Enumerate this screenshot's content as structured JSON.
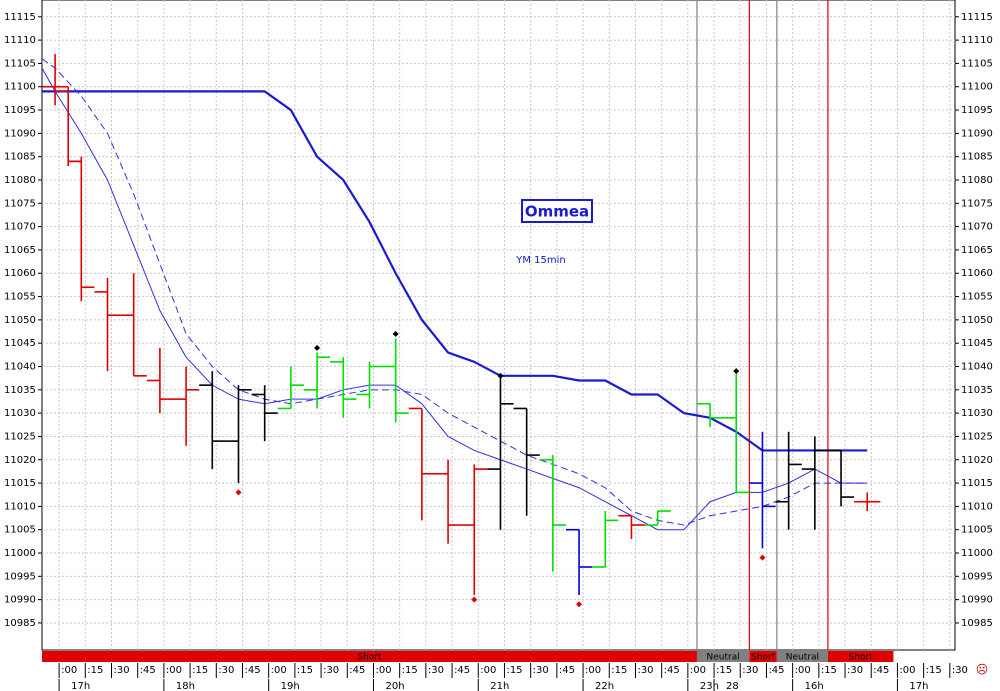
{
  "chart_data": {
    "type": "ohlc",
    "title": "Ommea",
    "subtitle": "YM 15min",
    "ylim": [
      10979.2,
      11118.6
    ],
    "yticks": [
      10985,
      10990,
      10995,
      11000,
      11005,
      11010,
      11015,
      11020,
      11025,
      11030,
      11035,
      11040,
      11045,
      11050,
      11055,
      11060,
      11065,
      11070,
      11075,
      11080,
      11085,
      11090,
      11095,
      11100,
      11105,
      11110,
      11115
    ],
    "xlim": [
      -0.5,
      34.35
    ],
    "grid": true,
    "slot_labels": [
      ":00",
      ":15",
      ":30",
      ":45",
      ":00",
      ":15",
      ":30",
      ":45",
      ":00",
      ":15",
      ":30",
      ":45",
      ":00",
      ":15",
      ":30",
      ":45",
      ":00",
      ":15",
      ":30",
      ":45",
      ":00",
      ":15",
      ":30",
      ":45",
      ":00",
      ":15",
      ":30",
      ":45",
      ":00",
      ":15",
      ":30",
      ":45",
      ":00",
      ":15",
      ":30"
    ],
    "hour_labels": [
      {
        "value": 0,
        "label": "17h"
      },
      {
        "value": 4,
        "label": "18h"
      },
      {
        "value": 8,
        "label": "19h"
      },
      {
        "value": 12,
        "label": "20h"
      },
      {
        "value": 16,
        "label": "21h"
      },
      {
        "value": 20,
        "label": "22h"
      },
      {
        "value": 24,
        "label": "23h"
      },
      {
        "value": 25,
        "label": "28"
      },
      {
        "value": 28,
        "label": "16h"
      },
      {
        "value": 32,
        "label": "17h"
      }
    ],
    "bars": [
      {
        "x": 0,
        "open": 11100,
        "high": 11107,
        "low": 11096,
        "close": 11100,
        "color": "#e00000"
      },
      {
        "x": 0.5,
        "open": 11099,
        "high": 11100,
        "low": 11083,
        "close": 11084,
        "color": "#e00000"
      },
      {
        "x": 1,
        "open": 11084,
        "high": 11085,
        "low": 11054,
        "close": 11057,
        "color": "#e00000"
      },
      {
        "x": 2,
        "open": 11056,
        "high": 11059,
        "low": 11039,
        "close": 11051,
        "color": "#e00000"
      },
      {
        "x": 3,
        "open": 11051,
        "high": 11060,
        "low": 11038,
        "close": 11038,
        "color": "#e00000"
      },
      {
        "x": 4,
        "open": 11037,
        "high": 11044,
        "low": 11030,
        "close": 11033,
        "color": "#e00000"
      },
      {
        "x": 5,
        "open": 11033,
        "high": 11040,
        "low": 11023,
        "close": 11035,
        "color": "#e00000"
      },
      {
        "x": 6,
        "open": 11036,
        "high": 11039,
        "low": 11018,
        "close": 11024,
        "color": "#000000"
      },
      {
        "x": 7,
        "open": 11024,
        "high": 11036,
        "low": 11015,
        "close": 11035,
        "color": "#000000"
      },
      {
        "x": 8,
        "open": 11034,
        "high": 11036,
        "low": 11024,
        "close": 11030,
        "color": "#000000"
      },
      {
        "x": 9,
        "open": 11031,
        "high": 11040,
        "low": 11031,
        "close": 11036,
        "color": "#00e000"
      },
      {
        "x": 10,
        "open": 11035,
        "high": 11043,
        "low": 11031,
        "close": 11042,
        "color": "#00e000"
      },
      {
        "x": 11,
        "open": 11041,
        "high": 11042,
        "low": 11029,
        "close": 11033,
        "color": "#00e000"
      },
      {
        "x": 12,
        "open": 11034,
        "high": 11041,
        "low": 11031,
        "close": 11040,
        "color": "#00e000"
      },
      {
        "x": 13,
        "open": 11040,
        "high": 11046,
        "low": 11028,
        "close": 11030,
        "color": "#00e000"
      },
      {
        "x": 14,
        "open": 11031,
        "high": 11031,
        "low": 11007,
        "close": 11017,
        "color": "#e00000"
      },
      {
        "x": 15,
        "open": 11017,
        "high": 11020,
        "low": 11002,
        "close": 11006,
        "color": "#e00000"
      },
      {
        "x": 16,
        "open": 11006,
        "high": 11019,
        "low": 10991,
        "close": 11018,
        "color": "#e00000"
      },
      {
        "x": 17,
        "open": 11018,
        "high": 11038,
        "low": 11005,
        "close": 11032,
        "color": "#000000"
      },
      {
        "x": 18,
        "open": 11031,
        "high": 11031,
        "low": 11008,
        "close": 11021,
        "color": "#000000"
      },
      {
        "x": 19,
        "open": 11020,
        "high": 11021,
        "low": 10996,
        "close": 11006,
        "color": "#00e000"
      },
      {
        "x": 20,
        "open": 11005,
        "high": 11005,
        "low": 10991,
        "close": 10997,
        "color": "#0000e0"
      },
      {
        "x": 21,
        "open": 10997,
        "high": 11009,
        "low": 10997,
        "close": 11007,
        "color": "#00e000"
      },
      {
        "x": 22,
        "open": 11008,
        "high": 11008,
        "low": 11003,
        "close": 11006,
        "color": "#e00000"
      },
      {
        "x": 23,
        "open": 11006,
        "high": 11009,
        "low": 11006,
        "close": 11009,
        "color": "#00e000"
      },
      {
        "x": 25,
        "open": 11032,
        "high": 11032,
        "low": 11027,
        "close": 11029,
        "color": "#00e000"
      },
      {
        "x": 26,
        "open": 11029,
        "high": 11039,
        "low": 11013,
        "close": 11013,
        "color": "#00e000"
      },
      {
        "x": 27,
        "open": 11015,
        "high": 11026,
        "low": 11001,
        "close": 11010,
        "color": "#0000e0"
      },
      {
        "x": 28,
        "open": 11011,
        "high": 11026,
        "low": 11005,
        "close": 11019,
        "color": "#000000"
      },
      {
        "x": 29,
        "open": 11018,
        "high": 11025,
        "low": 11005,
        "close": 11022,
        "color": "#000000"
      },
      {
        "x": 30,
        "open": 11022,
        "high": 11022,
        "low": 11010,
        "close": 11012,
        "color": "#000000"
      },
      {
        "x": 31,
        "open": 11011,
        "high": 11013,
        "low": 11009,
        "close": 11011,
        "color": "#e00000"
      }
    ],
    "series": [
      {
        "style": "thick",
        "color": "#1a1ad0",
        "x": [
          -0.5,
          8,
          9,
          10,
          11,
          12,
          13,
          14,
          15,
          16,
          17,
          18,
          19,
          20,
          21,
          22,
          23,
          24,
          25,
          26,
          27,
          28,
          29,
          30,
          31
        ],
        "values": [
          11099,
          11099,
          11095,
          11085,
          11080,
          11071,
          11060,
          11050,
          11043,
          11041,
          11038,
          11038,
          11038,
          11037,
          11037,
          11034,
          11034,
          11030,
          11029,
          11026,
          11022,
          11022,
          11022,
          11022,
          11022
        ]
      },
      {
        "style": "solid",
        "color": "#3030e0",
        "x": [
          -0.5,
          0,
          1,
          2,
          3,
          4,
          5,
          6,
          7,
          8,
          9,
          10,
          11,
          12,
          13,
          14,
          15,
          16,
          17,
          18,
          19,
          20,
          21,
          22,
          23,
          24,
          25,
          26,
          27,
          28,
          29,
          30,
          31
        ],
        "values": [
          11104,
          11099,
          11090,
          11080,
          11066,
          11052,
          11042,
          11036,
          11033,
          11032,
          11033,
          11033,
          11035,
          11036,
          11036,
          11032,
          11025,
          11022,
          11020,
          11018,
          11016,
          11014,
          11011,
          11008,
          11005,
          11005,
          11011,
          11013,
          11013,
          11015,
          11018,
          11015,
          11015
        ]
      },
      {
        "style": "dashed",
        "color": "#3030e0",
        "x": [
          -0.5,
          0,
          1,
          2,
          3,
          4,
          5,
          6,
          7,
          8,
          9,
          10,
          11,
          12,
          13,
          14,
          15,
          16,
          17,
          18,
          19,
          20,
          21,
          22,
          23,
          24,
          25,
          26,
          27,
          28,
          29,
          30,
          31
        ],
        "values": [
          11106,
          11104,
          11098,
          11090,
          11077,
          11062,
          11047,
          11040,
          11035,
          11033,
          11032,
          11033,
          11034,
          11035,
          11035,
          11034,
          11030,
          11027,
          11024,
          11021,
          11019,
          11017,
          11014,
          11009,
          11007,
          11006,
          11008,
          11009,
          11010,
          11012,
          11015,
          11015,
          11015
        ]
      }
    ],
    "signals": [
      {
        "x": 10,
        "value": 11044,
        "color": "#000000"
      },
      {
        "x": 13,
        "value": 11047,
        "color": "#000000"
      },
      {
        "x": 17,
        "value": 11038,
        "color": "#000000"
      },
      {
        "x": 26,
        "value": 11039,
        "color": "#000000"
      },
      {
        "x": 7,
        "value": 11013,
        "color": "#e00000"
      },
      {
        "x": 16,
        "value": 10990,
        "color": "#e00000"
      },
      {
        "x": 20,
        "value": 10989,
        "color": "#e00000"
      },
      {
        "x": 27,
        "value": 10999,
        "color": "#e00000"
      }
    ],
    "regimes": [
      {
        "label": "Short",
        "start": -0.5,
        "end": 24.5,
        "color": "#e00000"
      },
      {
        "label": "Neutral",
        "start": 24.5,
        "end": 26.5,
        "color": "#808080"
      },
      {
        "label": "Short",
        "start": 26.5,
        "end": 27.55,
        "color": "#e00000"
      },
      {
        "label": "Neutral",
        "start": 27.55,
        "end": 29.5,
        "color": "#808080"
      },
      {
        "label": "Short",
        "start": 29.5,
        "end": 32,
        "color": "#e00000"
      }
    ]
  }
}
